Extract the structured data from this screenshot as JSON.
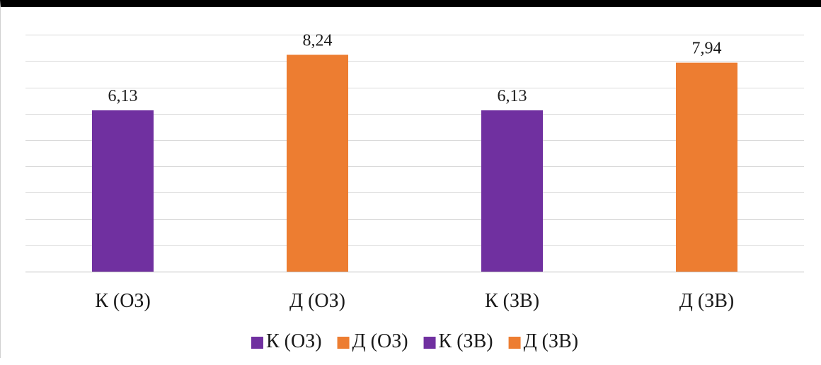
{
  "chart_data": {
    "type": "bar",
    "categories": [
      "К (ОЗ)",
      "Д (ОЗ)",
      "К (ЗВ)",
      "Д (ЗВ)"
    ],
    "values": [
      6.13,
      8.24,
      6.13,
      7.94
    ],
    "value_labels": [
      "6,13",
      "8,24",
      "6,13",
      "7,94"
    ],
    "colors": [
      "#7030a0",
      "#ed7d31",
      "#7030a0",
      "#ed7d31"
    ],
    "ylim": [
      0,
      9
    ],
    "grid": true,
    "legend": {
      "placement": "bottom",
      "entries": [
        {
          "label": "К (ОЗ)",
          "color": "#7030a0"
        },
        {
          "label": "Д (ОЗ)",
          "color": "#ed7d31"
        },
        {
          "label": "К (ЗВ)",
          "color": "#7030a0"
        },
        {
          "label": "Д (ЗВ)",
          "color": "#ed7d31"
        }
      ]
    },
    "title": "",
    "xlabel": "",
    "ylabel": ""
  }
}
